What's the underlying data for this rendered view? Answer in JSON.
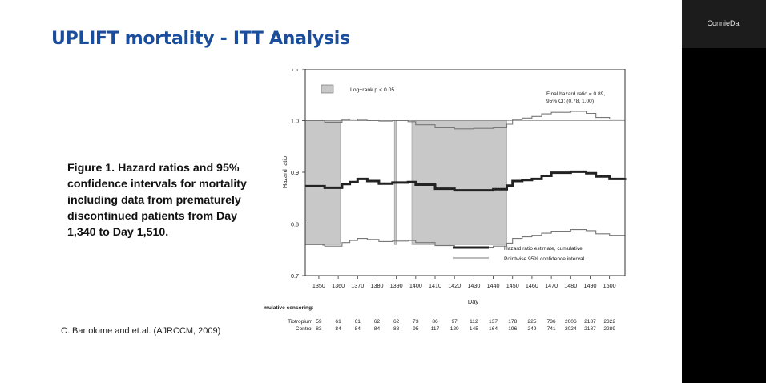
{
  "slide": {
    "title": "UPLIFT mortality -  ITT Analysis",
    "caption": "Figure 1. Hazard ratios and 95% confidence intervals for mortality including data from prematurely discontinued patients from Day 1,340 to Day 1,510.",
    "citation": "C. Bartolome and et.al. (AJRCCM, 2009)"
  },
  "participant": {
    "name": "ConnieDai"
  },
  "chart_data": {
    "type": "line",
    "xlabel": "Day",
    "ylabel": "Hazard ratio",
    "xlim": [
      1343,
      1508
    ],
    "ylim": [
      0.7,
      1.1
    ],
    "x_ticks": [
      1350,
      1360,
      1370,
      1380,
      1390,
      1400,
      1410,
      1420,
      1430,
      1440,
      1450,
      1460,
      1470,
      1480,
      1490,
      1500
    ],
    "y_ticks": [
      0.7,
      0.8,
      0.9,
      1.0,
      1.1
    ],
    "y_tick_labels": [
      "0.7",
      "0.8",
      "0.9",
      "1.0",
      "1.1"
    ],
    "reference_line": 1.0,
    "shaded_legend_label": "Log−rank p < 0.05",
    "shaded_color": "#c8c8c8",
    "shaded_regions": [
      [
        1343,
        1361
      ],
      [
        1389,
        1390
      ],
      [
        1398,
        1447
      ]
    ],
    "annotation_lines": [
      "Final hazard ratio = 0.89,",
      "95% CI: (0.78, 1.00)"
    ],
    "series": [
      {
        "name": "Hazard ratio estimate, cumulative",
        "color": "#222222",
        "x": [
          1343,
          1352,
          1353,
          1361,
          1362,
          1366,
          1370,
          1375,
          1381,
          1388,
          1396,
          1400,
          1410,
          1420,
          1430,
          1440,
          1447,
          1450,
          1455,
          1460,
          1465,
          1470,
          1480,
          1488,
          1493,
          1500,
          1508
        ],
        "y": [
          0.873,
          0.873,
          0.87,
          0.87,
          0.877,
          0.881,
          0.887,
          0.883,
          0.878,
          0.88,
          0.881,
          0.876,
          0.868,
          0.865,
          0.865,
          0.867,
          0.874,
          0.883,
          0.885,
          0.887,
          0.893,
          0.899,
          0.901,
          0.898,
          0.892,
          0.887,
          0.889
        ]
      },
      {
        "name": "Pointwise 95% confidence interval",
        "color": "#777777",
        "x": [
          1343,
          1352,
          1353,
          1361,
          1362,
          1366,
          1370,
          1375,
          1381,
          1388,
          1396,
          1400,
          1410,
          1420,
          1430,
          1440,
          1447,
          1450,
          1455,
          1460,
          1465,
          1470,
          1480,
          1488,
          1493,
          1500,
          1508
        ],
        "y": [
          1.0,
          1.0,
          0.997,
          0.997,
          1.002,
          1.003,
          1.001,
          1.0,
          0.999,
          1.0,
          0.998,
          0.992,
          0.986,
          0.984,
          0.985,
          0.986,
          0.993,
          1.002,
          1.005,
          1.008,
          1.013,
          1.016,
          1.018,
          1.014,
          1.006,
          1.003,
          1.004
        ]
      },
      {
        "name": "",
        "color": "#777777",
        "x": [
          1343,
          1352,
          1353,
          1361,
          1362,
          1366,
          1370,
          1375,
          1381,
          1388,
          1396,
          1400,
          1410,
          1420,
          1430,
          1440,
          1447,
          1450,
          1455,
          1460,
          1465,
          1470,
          1480,
          1488,
          1493,
          1500,
          1508
        ],
        "y": [
          0.76,
          0.759,
          0.757,
          0.757,
          0.764,
          0.768,
          0.772,
          0.77,
          0.766,
          0.767,
          0.768,
          0.764,
          0.758,
          0.755,
          0.755,
          0.757,
          0.763,
          0.772,
          0.775,
          0.778,
          0.782,
          0.786,
          0.789,
          0.787,
          0.781,
          0.778,
          0.78
        ]
      }
    ],
    "censoring": {
      "label": "mulative censoring:",
      "rows": [
        {
          "group": "Tiotropium",
          "values": [
            "59",
            "61",
            "61",
            "62",
            "62",
            "73",
            "86",
            "97",
            "112",
            "137",
            "178",
            "225",
            "736",
            "2006",
            "2187",
            "2322"
          ]
        },
        {
          "group": "Control",
          "values": [
            "83",
            "84",
            "84",
            "84",
            "88",
            "95",
            "117",
            "129",
            "145",
            "164",
            "196",
            "249",
            "741",
            "2024",
            "2187",
            "2289"
          ]
        }
      ]
    }
  }
}
